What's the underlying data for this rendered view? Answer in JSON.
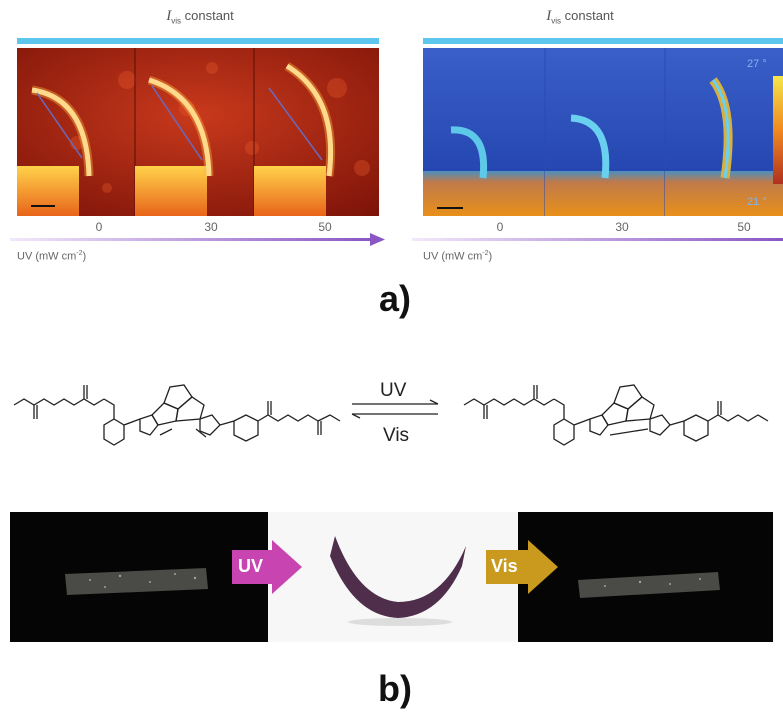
{
  "panel_a": {
    "left_header": {
      "symbol": "I",
      "subscript": "vis",
      "text": "constant"
    },
    "right_header": {
      "symbol": "I",
      "subscript": "vis",
      "text": "constant"
    },
    "ticks_left": [
      "0",
      "30",
      "50"
    ],
    "ticks_right": [
      "0",
      "30",
      "50"
    ],
    "axis_label": {
      "prefix": "UV (mW cm",
      "exp": "-2",
      "suffix": ")"
    },
    "axis_label_right": {
      "prefix": "UV (mW cm",
      "exp": "-2",
      "suffix": ")"
    },
    "temp_high": "27 °",
    "temp_low": "21 °",
    "caption": "a)"
  },
  "panel_b": {
    "arrow_forward": "UV",
    "arrow_back": "Vis",
    "photo_arrow_uv": "UV",
    "photo_arrow_vis": "Vis",
    "caption": "b)"
  },
  "colors": {
    "bar": "#5cc6ec",
    "axis_arrow": "#8a56c4",
    "uv_arrow": "#c844b0",
    "vis_arrow": "#c99a1e"
  }
}
